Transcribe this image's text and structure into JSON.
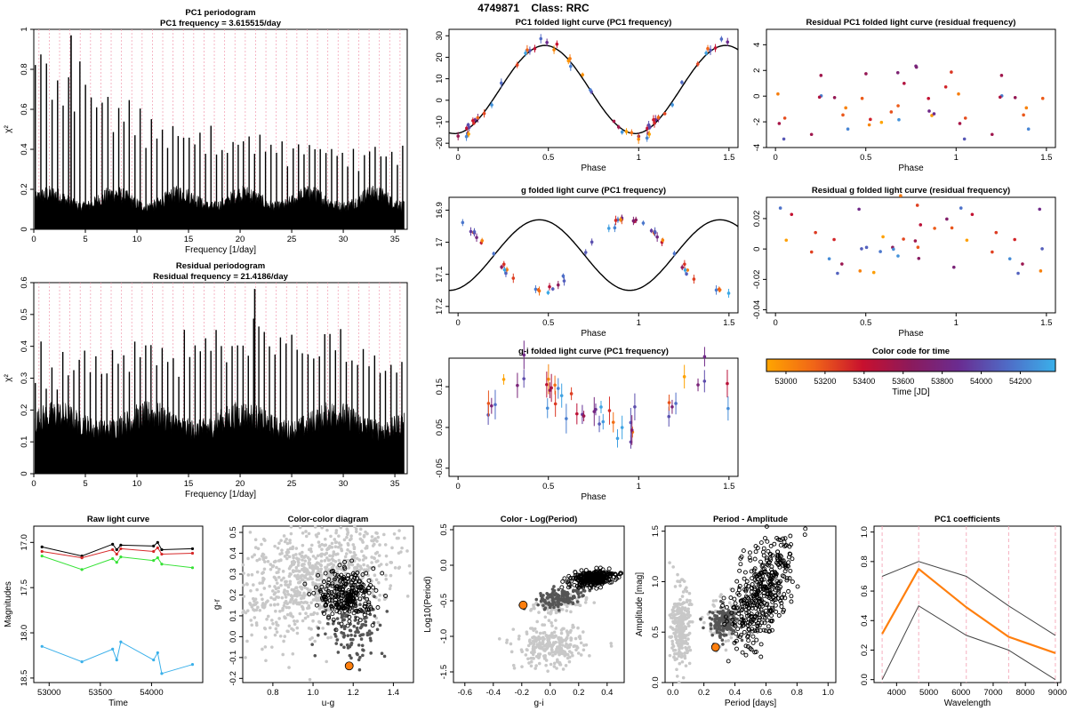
{
  "header": {
    "star_id": "4749871",
    "class_label": "Class: RRC"
  },
  "colors": {
    "fit_line": "#000000",
    "orange": "#ff7f0e",
    "pink_grid": "#f4a6b8",
    "gray": "#c8c8c8",
    "dark_gray": "#555555",
    "blue": "#3ab0ea",
    "green": "#36e236",
    "red": "#d62728"
  },
  "chart_data": [
    {
      "id": "pc1_periodogram",
      "type": "line",
      "title": "PC1 periodogram",
      "subtitle": "PC1 frequency = 3.615515/day",
      "xlabel": "Frequency [1/day]",
      "ylabel": "χ²",
      "xlim": [
        0,
        36.2
      ],
      "ylim": [
        0,
        1.0
      ],
      "xticks": [
        0,
        5,
        10,
        15,
        20,
        25,
        30,
        35
      ],
      "yticks": [
        0.0,
        0.2,
        0.4,
        0.6,
        0.8,
        1.0
      ],
      "peak_frequency": 3.615515,
      "peak_value": 0.97
    },
    {
      "id": "residual_periodogram",
      "type": "line",
      "title": "Residual periodogram",
      "subtitle": "Residual frequency = 21.4186/day",
      "xlabel": "Frequency [1/day]",
      "ylabel": "χ²",
      "xlim": [
        0,
        36.2
      ],
      "ylim": [
        0,
        0.6
      ],
      "xticks": [
        0,
        5,
        10,
        15,
        20,
        25,
        30,
        35
      ],
      "yticks": [
        0.0,
        0.1,
        0.2,
        0.3,
        0.4,
        0.5,
        0.6
      ],
      "peak_frequency": 21.4186,
      "peak_value": 0.58
    },
    {
      "id": "pc1_folded",
      "type": "scatter",
      "title": "PC1 folded light curve (PC1 frequency)",
      "xlabel": "Phase",
      "ylabel": "",
      "xlim": [
        -0.05,
        1.55
      ],
      "ylim": [
        -22,
        33
      ],
      "xticks": [
        0.0,
        0.5,
        1.0,
        1.5
      ],
      "yticks": [
        -20,
        -10,
        0,
        10,
        20,
        30
      ],
      "model": {
        "mean": 5,
        "amplitude": 20.5,
        "phase_of_max": 0.48
      }
    },
    {
      "id": "g_folded",
      "type": "scatter",
      "title": "g folded light curve (PC1 frequency)",
      "xlabel": "Phase",
      "ylabel": "",
      "xlim": [
        -0.05,
        1.55
      ],
      "ylim": [
        17.22,
        16.86
      ],
      "xticks": [
        0.0,
        0.5,
        1.0,
        1.5
      ],
      "yticks": [
        16.9,
        17.0,
        17.1,
        17.2
      ],
      "model": {
        "mean": 17.04,
        "amplitude": 0.11,
        "phase_of_max": 0.95
      }
    },
    {
      "id": "gi_folded",
      "type": "scatter",
      "title": "g-i folded light curve (PC1 frequency)",
      "xlabel": "Phase",
      "ylabel": "",
      "xlim": [
        -0.05,
        1.55
      ],
      "ylim": [
        -0.07,
        0.22
      ],
      "xticks": [
        0.0,
        0.5,
        1.0,
        1.5
      ],
      "yticks": [
        -0.05,
        0.05,
        0.15
      ]
    },
    {
      "id": "res_pc1_folded",
      "type": "scatter",
      "title": "Residual PC1 folded light curve (residual frequency)",
      "xlabel": "Phase",
      "ylabel": "",
      "xlim": [
        -0.05,
        1.55
      ],
      "ylim": [
        -4,
        5.2
      ],
      "xticks": [
        0.0,
        0.5,
        1.0,
        1.5
      ],
      "yticks": [
        -4,
        -2,
        0,
        2,
        4
      ]
    },
    {
      "id": "res_g_folded",
      "type": "scatter",
      "title": "Residual g folded light curve (residual frequency)",
      "xlabel": "Phase",
      "ylabel": "",
      "xlim": [
        -0.05,
        1.55
      ],
      "ylim": [
        -0.042,
        0.034
      ],
      "xticks": [
        0.0,
        0.5,
        1.0,
        1.5
      ],
      "yticks": [
        -0.04,
        -0.02,
        0.0,
        0.02
      ]
    },
    {
      "id": "color_code",
      "type": "heatmap",
      "title": "Color code for time",
      "xlabel": "Time [JD]",
      "xlim": [
        52900,
        54380
      ],
      "xticks": [
        53000,
        53200,
        53400,
        53600,
        53800,
        54000,
        54200
      ],
      "tick_labels": [
        "53000",
        "53200",
        "53400",
        "53600",
        "53800",
        "54000",
        "54200"
      ],
      "colorscale": [
        "#ffa500",
        "#f06418",
        "#c8102e",
        "#8b1a5c",
        "#6a2c91",
        "#4f6bc6",
        "#3ab0ea"
      ]
    },
    {
      "id": "raw_lc",
      "type": "line",
      "title": "Raw light curve",
      "xlabel": "Time",
      "ylabel": "Magnitudes",
      "xlim": [
        52850,
        54500
      ],
      "ylim": [
        18.55,
        16.82
      ],
      "xticks": [
        53000,
        53500,
        54000
      ],
      "yticks": [
        17.0,
        17.5,
        18.0,
        18.5
      ],
      "tick_labels_x": [
        "53000",
        "53500",
        "54000"
      ],
      "tick_labels_y": [
        "17.0",
        "17.5",
        "18.0",
        "18.5"
      ],
      "series": [
        {
          "name": "black",
          "times": [
            52930,
            53320,
            53620,
            53660,
            53700,
            54020,
            54060,
            54100,
            54400
          ],
          "mags": [
            17.05,
            17.15,
            17.02,
            17.08,
            17.03,
            17.04,
            17.0,
            17.08,
            17.07
          ]
        },
        {
          "name": "red",
          "times": [
            52930,
            53320,
            53620,
            53660,
            53700,
            54020,
            54060,
            54100,
            54400
          ],
          "mags": [
            17.1,
            17.17,
            17.08,
            17.13,
            17.07,
            17.1,
            17.06,
            17.13,
            17.12
          ]
        },
        {
          "name": "green",
          "times": [
            52930,
            53320,
            53620,
            53660,
            53700,
            54020,
            54060,
            54100,
            54400
          ],
          "mags": [
            17.15,
            17.3,
            17.18,
            17.22,
            17.16,
            17.2,
            17.17,
            17.24,
            17.28
          ]
        },
        {
          "name": "blue",
          "times": [
            52930,
            53320,
            53620,
            53660,
            53700,
            54020,
            54060,
            54100,
            54400
          ],
          "mags": [
            18.15,
            18.32,
            18.18,
            18.3,
            18.1,
            18.3,
            18.22,
            18.45,
            18.35
          ]
        }
      ]
    },
    {
      "id": "color_color",
      "type": "scatter",
      "title": "Color-color diagram",
      "xlabel": "u-g",
      "ylabel": "g-r",
      "xlim": [
        0.65,
        1.5
      ],
      "ylim": [
        -0.22,
        0.53
      ],
      "xticks": [
        0.8,
        1.0,
        1.2,
        1.4
      ],
      "yticks": [
        -0.2,
        -0.1,
        0.0,
        0.1,
        0.2,
        0.3,
        0.4,
        0.5
      ],
      "tick_labels_x": [
        "0.8",
        "1.0",
        "1.2",
        "1.4"
      ],
      "tick_labels_y": [
        "-0.2",
        "-0.1",
        "0.0",
        "0.1",
        "0.2",
        "0.3",
        "0.4",
        "0.5"
      ],
      "highlight": {
        "x": 1.18,
        "y": -0.14
      }
    },
    {
      "id": "color_logp",
      "type": "scatter",
      "title": "Color - Log(Period)",
      "xlabel": "g-i",
      "ylabel": "Log10(Period)",
      "xlim": [
        -0.68,
        0.52
      ],
      "ylim": [
        -1.65,
        0.55
      ],
      "xticks": [
        -0.6,
        -0.4,
        -0.2,
        0.0,
        0.2,
        0.4
      ],
      "yticks": [
        -1.5,
        -1.0,
        -0.5,
        0.0,
        0.5
      ],
      "tick_labels_x": [
        "-0.6",
        "-0.4",
        "-0.2",
        "0.0",
        "0.2",
        "0.4"
      ],
      "tick_labels_y": [
        "-1.5",
        "-1.0",
        "-0.5",
        "0.0",
        "0.5"
      ],
      "highlight": {
        "x": -0.19,
        "y": -0.56
      }
    },
    {
      "id": "period_amp",
      "type": "scatter",
      "title": "Period - Amplitude",
      "xlabel": "Period [days]",
      "ylabel": "Amplitude [mag]",
      "xlim": [
        -0.05,
        1.05
      ],
      "ylim": [
        0.0,
        1.55
      ],
      "xticks": [
        0.0,
        0.2,
        0.4,
        0.6,
        0.8,
        1.0
      ],
      "yticks": [
        0.0,
        0.5,
        1.0,
        1.5
      ],
      "tick_labels_x": [
        "0.0",
        "0.2",
        "0.4",
        "0.6",
        "0.8",
        "1.0"
      ],
      "tick_labels_y": [
        "0.0",
        "0.5",
        "1.0",
        "1.5"
      ],
      "highlight": {
        "x": 0.275,
        "y": 0.35
      }
    },
    {
      "id": "pc1_coeff",
      "type": "line",
      "title": "PC1 coefficients",
      "xlabel": "Wavelength",
      "ylabel": "",
      "xlim": [
        3300,
        9100
      ],
      "ylim": [
        -0.02,
        1.04
      ],
      "xticks": [
        4000,
        5000,
        6000,
        7000,
        8000,
        9000
      ],
      "yticks": [
        0.0,
        0.2,
        0.4,
        0.6,
        0.8,
        1.0
      ],
      "tick_labels_x": [
        "4000",
        "5000",
        "6000",
        "7000",
        "8000",
        "9000"
      ],
      "tick_labels_y": [
        "0.0",
        "0.2",
        "0.4",
        "0.6",
        "0.8",
        "1.0"
      ],
      "wavelengths": [
        3551,
        4686,
        6166,
        7480,
        8932
      ],
      "series": [
        {
          "name": "upper",
          "values": [
            0.7,
            0.8,
            0.7,
            0.5,
            0.3
          ]
        },
        {
          "name": "pc1",
          "values": [
            0.31,
            0.75,
            0.49,
            0.29,
            0.18
          ]
        },
        {
          "name": "lower",
          "values": [
            0.0,
            0.5,
            0.3,
            0.2,
            0.0
          ]
        }
      ]
    }
  ]
}
